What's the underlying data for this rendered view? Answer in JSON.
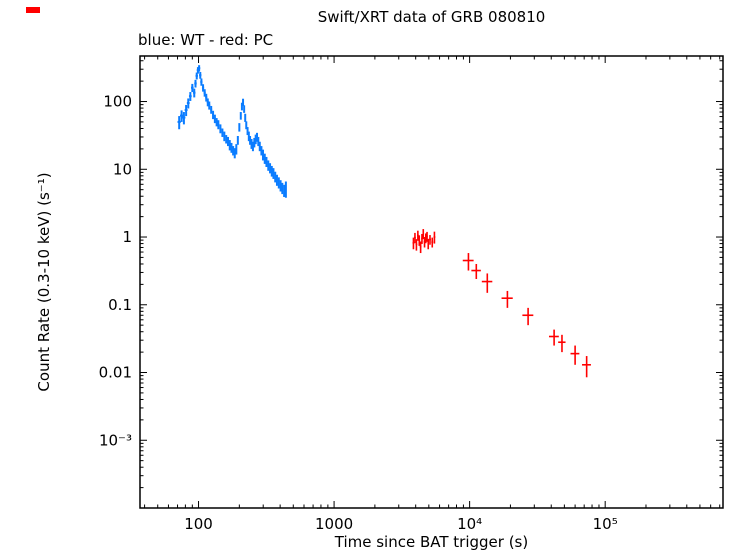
{
  "chart_data": {
    "type": "scatter",
    "mode": "errorbar",
    "title": "Swift/XRT data of GRB 080810",
    "subtitle": "blue: WT - red: PC",
    "xlabel": "Time since BAT trigger (s)",
    "ylabel": "Count Rate (0.3-10 keV) (s⁻¹)",
    "xscale": "log",
    "yscale": "log",
    "xlim": [
      37,
      740000
    ],
    "ylim": [
      0.0001,
      470
    ],
    "grid": false,
    "frame_color": "#000000",
    "x_ticks": [
      {
        "value": 100,
        "label": "100"
      },
      {
        "value": 1000,
        "label": "1000"
      },
      {
        "value": 10000,
        "label": "10⁴"
      },
      {
        "value": 100000,
        "label": "10⁵"
      }
    ],
    "y_ticks": [
      {
        "value": 0.001,
        "label": "10⁻³"
      },
      {
        "value": 0.01,
        "label": "0.01"
      },
      {
        "value": 0.1,
        "label": "0.1"
      },
      {
        "value": 1,
        "label": "1"
      },
      {
        "value": 10,
        "label": "10"
      },
      {
        "value": 100,
        "label": "100"
      }
    ],
    "series": [
      {
        "name": "WT (Windowed Timing)",
        "color": "#0a7cff",
        "stroke_width": 2,
        "points_format": [
          "time_s",
          "rate",
          "rate_err",
          "time_half_bin_s"
        ],
        "points": [
          [
            72,
            50,
            11,
            2
          ],
          [
            75,
            62,
            12,
            2
          ],
          [
            78,
            58,
            12,
            2
          ],
          [
            81,
            75,
            14,
            2
          ],
          [
            84,
            95,
            16,
            2
          ],
          [
            87,
            120,
            18,
            2
          ],
          [
            90,
            160,
            22,
            2
          ],
          [
            93,
            135,
            20,
            2
          ],
          [
            95,
            185,
            24,
            2
          ],
          [
            97,
            240,
            28,
            2
          ],
          [
            99,
            290,
            32,
            2
          ],
          [
            101,
            310,
            34,
            2
          ],
          [
            103,
            245,
            28,
            2
          ],
          [
            105,
            195,
            24,
            2
          ],
          [
            108,
            160,
            20,
            2
          ],
          [
            111,
            135,
            17,
            2
          ],
          [
            114,
            115,
            15,
            2
          ],
          [
            117,
            98,
            13,
            2
          ],
          [
            120,
            88,
            12,
            2
          ],
          [
            124,
            76,
            10,
            2
          ],
          [
            128,
            64,
            9,
            2
          ],
          [
            132,
            56,
            8,
            2
          ],
          [
            136,
            50,
            7,
            2
          ],
          [
            140,
            46,
            7,
            2
          ],
          [
            145,
            40,
            6,
            2
          ],
          [
            150,
            35,
            5,
            2
          ],
          [
            155,
            31,
            5,
            2
          ],
          [
            160,
            28,
            4,
            2
          ],
          [
            165,
            26,
            4,
            2
          ],
          [
            170,
            23,
            4,
            2
          ],
          [
            175,
            21,
            3.5,
            2
          ],
          [
            180,
            19,
            3,
            2
          ],
          [
            185,
            17.5,
            3,
            2
          ],
          [
            190,
            20,
            3.5,
            2
          ],
          [
            195,
            27,
            4,
            2
          ],
          [
            200,
            42,
            6,
            2
          ],
          [
            205,
            62,
            8,
            2
          ],
          [
            209,
            85,
            11,
            2
          ],
          [
            213,
            98,
            12,
            2
          ],
          [
            217,
            78,
            10,
            2
          ],
          [
            221,
            58,
            8,
            2
          ],
          [
            225,
            45,
            6,
            2
          ],
          [
            230,
            37,
            5,
            2
          ],
          [
            235,
            31,
            5,
            2
          ],
          [
            240,
            27,
            4,
            2
          ],
          [
            246,
            24,
            4,
            2
          ],
          [
            252,
            22,
            3.5,
            2
          ],
          [
            258,
            25,
            4,
            2
          ],
          [
            264,
            28,
            4.5,
            2
          ],
          [
            270,
            30,
            4.5,
            2
          ],
          [
            276,
            26,
            4,
            2
          ],
          [
            283,
            22,
            3.5,
            2
          ],
          [
            291,
            19,
            3,
            2
          ],
          [
            299,
            16.5,
            3,
            2
          ],
          [
            308,
            14.5,
            2.5,
            2
          ],
          [
            317,
            13,
            2.2,
            2
          ],
          [
            327,
            11.5,
            2,
            2
          ],
          [
            337,
            10.5,
            1.8,
            2
          ],
          [
            347,
            9.5,
            1.7,
            2
          ],
          [
            357,
            8.8,
            1.6,
            2
          ],
          [
            368,
            7.8,
            1.4,
            2
          ],
          [
            379,
            7,
            1.3,
            2
          ],
          [
            391,
            6.4,
            1.2,
            2
          ],
          [
            403,
            5.8,
            1.1,
            2
          ],
          [
            415,
            5.3,
            1,
            2
          ],
          [
            428,
            4.9,
            1,
            2
          ],
          [
            441,
            5.2,
            1.4,
            2
          ]
        ]
      },
      {
        "name": "PC (Photon Counting)",
        "color": "#ff0000",
        "stroke_width": 1.6,
        "points_format": [
          "time_s",
          "rate",
          "rate_err",
          "time_half_bin_s"
        ],
        "points": [
          [
            3850,
            0.82,
            0.16,
            60
          ],
          [
            3950,
            0.98,
            0.17,
            60
          ],
          [
            4050,
            0.78,
            0.15,
            60
          ],
          [
            4150,
            1.06,
            0.18,
            60
          ],
          [
            4250,
            0.9,
            0.16,
            60
          ],
          [
            4350,
            0.72,
            0.14,
            60
          ],
          [
            4450,
            0.95,
            0.16,
            60
          ],
          [
            4550,
            1.12,
            0.19,
            60
          ],
          [
            4650,
            0.85,
            0.15,
            60
          ],
          [
            4750,
            0.97,
            0.16,
            60
          ],
          [
            4850,
            1.02,
            0.17,
            60
          ],
          [
            4950,
            0.8,
            0.14,
            60
          ],
          [
            5100,
            0.92,
            0.15,
            80
          ],
          [
            5300,
            0.84,
            0.14,
            80
          ],
          [
            5500,
            1.0,
            0.2,
            80
          ],
          [
            9800,
            0.45,
            0.13,
            900
          ],
          [
            11200,
            0.32,
            0.08,
            900
          ],
          [
            13500,
            0.22,
            0.07,
            1200
          ],
          [
            19000,
            0.125,
            0.035,
            1800
          ],
          [
            27000,
            0.07,
            0.02,
            2500
          ],
          [
            42000,
            0.034,
            0.009,
            3500
          ],
          [
            48000,
            0.028,
            0.008,
            3000
          ],
          [
            60000,
            0.019,
            0.006,
            4500
          ],
          [
            73000,
            0.013,
            0.0045,
            5500
          ]
        ]
      }
    ]
  },
  "decor": {
    "corner_mark_color": "#ff0000"
  }
}
